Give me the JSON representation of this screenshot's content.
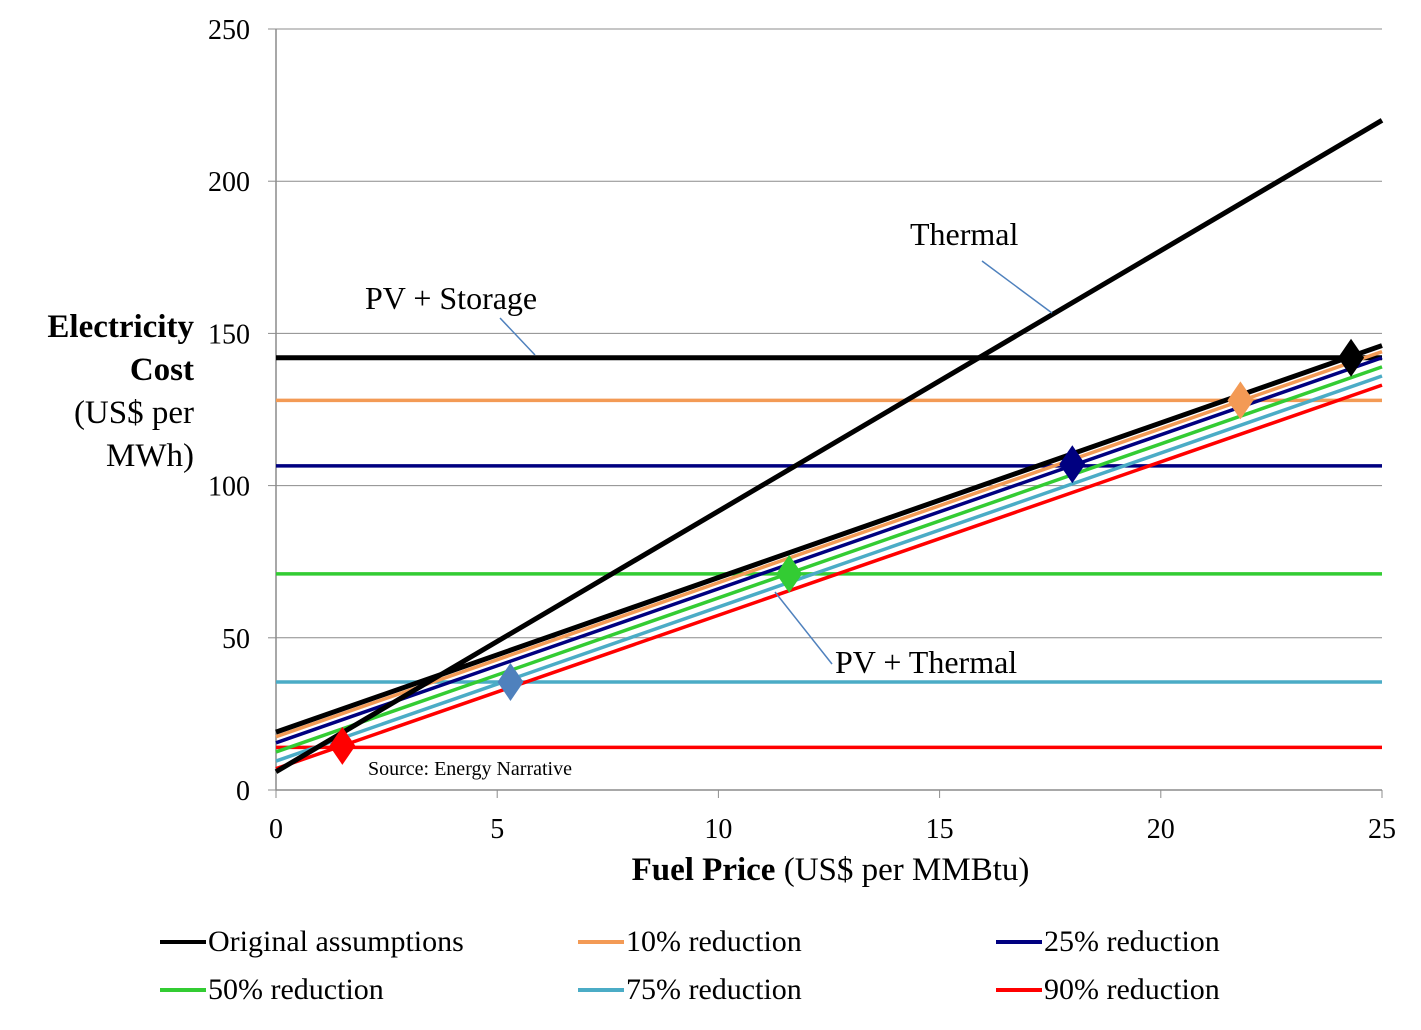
{
  "chart_data": {
    "type": "line",
    "xlim": [
      0,
      25
    ],
    "ylim": [
      0,
      250
    ],
    "x_ticks": [
      "0",
      "5",
      "10",
      "15",
      "20",
      "25"
    ],
    "y_ticks": [
      "0",
      "50",
      "100",
      "150",
      "200",
      "250"
    ],
    "grid": "horizontal",
    "ylabel_bold": "Electricity Cost",
    "ylabel_unit": "(US$ per MWh)",
    "xlabel_bold": "Fuel Price",
    "xlabel_unit": "(US$ per MMBtu)",
    "thermal": {
      "x": [
        0,
        25
      ],
      "y": [
        6,
        220
      ],
      "color": "#000000"
    },
    "series": [
      {
        "name": "Original assumptions",
        "color": "#000000",
        "pv_storage": 142,
        "pv_thermal": [
          [
            0,
            19
          ],
          [
            25,
            146
          ]
        ],
        "crossover": [
          24.3,
          142
        ]
      },
      {
        "name": "10% reduction",
        "color": "#F39A55",
        "pv_storage": 128,
        "pv_thermal": [
          [
            0,
            17.5
          ],
          [
            25,
            144
          ]
        ],
        "crossover": [
          21.8,
          128
        ]
      },
      {
        "name": "25% reduction",
        "color": "#000080",
        "pv_storage": 106.5,
        "pv_thermal": [
          [
            0,
            15.5
          ],
          [
            25,
            142
          ]
        ],
        "crossover": [
          18,
          107
        ]
      },
      {
        "name": "50% reduction",
        "color": "#33CC33",
        "pv_storage": 71,
        "pv_thermal": [
          [
            0,
            12.5
          ],
          [
            25,
            139
          ]
        ],
        "crossover": [
          11.6,
          71
        ]
      },
      {
        "name": "75% reduction",
        "color": "#4BACC6",
        "pv_storage": 35.5,
        "pv_thermal": [
          [
            0,
            9.5
          ],
          [
            25,
            136
          ]
        ],
        "crossover": [
          5.3,
          35.5
        ]
      },
      {
        "name": "90% reduction",
        "color": "#FF0000",
        "pv_storage": 14,
        "pv_thermal": [
          [
            0,
            7
          ],
          [
            25,
            133
          ]
        ],
        "crossover": [
          1.5,
          14.5
        ]
      }
    ],
    "annotations": {
      "thermal": "Thermal",
      "pv_storage": "PV + Storage",
      "pv_thermal": "PV + Thermal"
    },
    "source": "Source: Energy Narrative"
  }
}
